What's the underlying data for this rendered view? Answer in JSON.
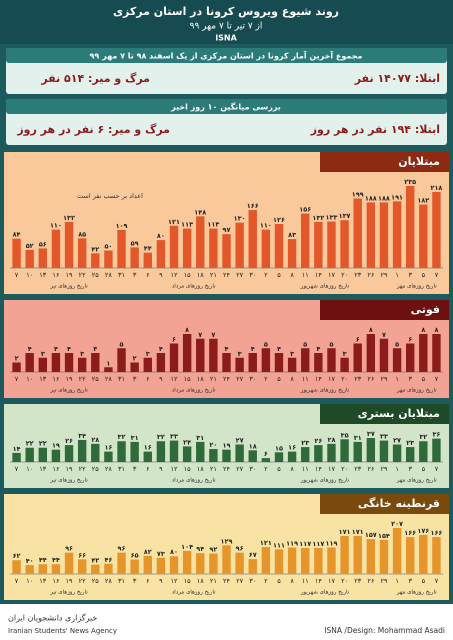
{
  "header": {
    "title": "روند شیوع ویروس کرونا در استان مرکزی",
    "subtitle": "از ۷ تیر تا ۷ مهر ۹۹",
    "brand": "ISNA"
  },
  "summary": [
    {
      "title": "مجموع آخرین آمار کرونا در استان مرکزی از یک اسفند ۹۸ تا ۷ مهر ۹۹",
      "infected": "ابتلا: ۱۴۰۷۷ نفر",
      "deaths": "مرگ و میر: ۵۱۴ نفر"
    },
    {
      "title": "بررسی میانگین ۱۰ روز اخیر",
      "infected": "ابتلا: ۱۹۴ نفر در هر روز",
      "deaths": "مرگ و میر: ۶ نفر در هر روز"
    }
  ],
  "chart_data": [
    {
      "type": "bar",
      "title": "مبتلایان",
      "note": "اعداد بر حسب نفر است",
      "color": "#e2582b",
      "background": "#f9c99b",
      "tab": "#8e2a12",
      "categories": [
        "۷",
        "۱۰",
        "۱۳",
        "۱۶",
        "۱۹",
        "۲۲",
        "۲۵",
        "۲۸",
        "۳۱",
        "۳",
        "۶",
        "۹",
        "۱۲",
        "۱۵",
        "۱۸",
        "۲۱",
        "۲۴",
        "۲۷",
        "۳۰",
        "۲",
        "۵",
        "۸",
        "۱۱",
        "۱۴",
        "۱۷",
        "۲۰",
        "۲۳",
        "۲۶",
        "۲۹",
        "۱",
        "۳",
        "۵",
        "۷"
      ],
      "values": [
        84,
        52,
        56,
        110,
        132,
        85,
        42,
        50,
        109,
        59,
        44,
        80,
        121,
        113,
        148,
        113,
        97,
        130,
        166,
        110,
        126,
        83,
        156,
        132,
        133,
        137,
        199,
        188,
        188,
        191,
        235,
        182,
        218
      ],
      "value_labels": [
        "۸۴",
        "۵۲",
        "۵۶",
        "۱۱۰",
        "۱۳۲",
        "۸۵",
        "۴۲",
        "۵۰",
        "۱۰۹",
        "۵۹",
        "۴۴",
        "۸۰",
        "۱۲۱",
        "۱۱۳",
        "۱۴۸",
        "۱۱۳",
        "۹۷",
        "۱۳۰",
        "۱۶۶",
        "۱۱۰",
        "۱۲۶",
        "۸۳",
        "۱۵۶",
        "۱۳۲",
        "۱۳۳",
        "۱۳۷",
        "۱۹۹",
        "۱۸۸",
        "۱۸۸",
        "۱۹۱",
        "۲۳۵",
        "۱۸۲",
        "۲۱۸"
      ],
      "annotations": [
        "تاریخ روزهای تیر",
        "تاریخ روزهای مرداد",
        "تاریخ روزهای شهریور",
        "تاریخ روزهای مهر"
      ]
    },
    {
      "type": "bar",
      "title": "فوتی",
      "color": "#8c1b1b",
      "background": "#f3a393",
      "tab": "#6e1010",
      "categories": [
        "۷",
        "۱۰",
        "۱۳",
        "۱۶",
        "۱۹",
        "۲۲",
        "۲۵",
        "۲۸",
        "۳۱",
        "۳",
        "۶",
        "۹",
        "۱۲",
        "۱۵",
        "۱۸",
        "۲۱",
        "۲۴",
        "۲۷",
        "۳۰",
        "۲",
        "۵",
        "۸",
        "۱۱",
        "۱۴",
        "۱۷",
        "۲۰",
        "۲۳",
        "۲۶",
        "۲۹",
        "۱",
        "۳",
        "۵",
        "۷"
      ],
      "values": [
        2,
        4,
        3,
        4,
        4,
        3,
        4,
        1,
        5,
        2,
        3,
        4,
        6,
        8,
        7,
        7,
        4,
        3,
        4,
        5,
        4,
        3,
        5,
        4,
        5,
        3,
        6,
        8,
        7,
        5,
        6,
        8,
        8
      ],
      "value_labels": [
        "۲",
        "۴",
        "۳",
        "۴",
        "۴",
        "۳",
        "۴",
        "۱",
        "۵",
        "۲",
        "۳",
        "۴",
        "۶",
        "۸",
        "۷",
        "۷",
        "۴",
        "۳",
        "۴",
        "۵",
        "۴",
        "۳",
        "۵",
        "۴",
        "۵",
        "۳",
        "۶",
        "۸",
        "۷",
        "۵",
        "۶",
        "۸",
        "۸"
      ],
      "annotations": [
        "تاریخ روزهای تیر",
        "تاریخ روزهای مرداد",
        "تاریخ روزهای شهریور",
        "تاریخ روزهای مهر"
      ]
    },
    {
      "type": "bar",
      "title": "مبتلایان بستری",
      "color": "#2f6b3a",
      "background": "#d2e5c9",
      "tab": "#1f4a28",
      "categories": [
        "۷",
        "۱۰",
        "۱۳",
        "۱۶",
        "۱۹",
        "۲۲",
        "۲۵",
        "۲۸",
        "۳۱",
        "۳",
        "۶",
        "۹",
        "۱۲",
        "۱۵",
        "۱۸",
        "۲۱",
        "۲۴",
        "۲۷",
        "۳۰",
        "۲",
        "۵",
        "۸",
        "۱۱",
        "۱۴",
        "۱۷",
        "۲۰",
        "۲۳",
        "۲۶",
        "۲۹",
        "۱",
        "۳",
        "۵",
        "۷"
      ],
      "values": [
        14,
        22,
        22,
        19,
        26,
        34,
        28,
        16,
        32,
        31,
        16,
        32,
        33,
        24,
        31,
        20,
        19,
        27,
        18,
        6,
        15,
        16,
        23,
        26,
        28,
        35,
        31,
        37,
        33,
        27,
        23,
        32,
        36
      ],
      "value_labels": [
        "۱۴",
        "۲۲",
        "۲۲",
        "۱۹",
        "۲۶",
        "۳۴",
        "۲۸",
        "۱۶",
        "۳۲",
        "۳۱",
        "۱۶",
        "۳۲",
        "۳۳",
        "۲۴",
        "۳۱",
        "۲۰",
        "۱۹",
        "۲۷",
        "۱۸",
        "۶",
        "۱۵",
        "۱۶",
        "۲۳",
        "۲۶",
        "۲۸",
        "۳۵",
        "۳۱",
        "۳۷",
        "۳۳",
        "۲۷",
        "۲۳",
        "۳۲",
        "۳۶"
      ],
      "annotations": [
        "تاریخ روزهای تیر",
        "تاریخ روزهای مرداد",
        "تاریخ روزهای شهریور",
        "تاریخ روزهای مهر"
      ]
    },
    {
      "type": "bar",
      "title": "قرنطینه خانگی",
      "color": "#e6952a",
      "background": "#f8e3a4",
      "tab": "#7a4a0c",
      "categories": [
        "۷",
        "۱۰",
        "۱۳",
        "۱۶",
        "۱۹",
        "۲۲",
        "۲۵",
        "۲۸",
        "۳۱",
        "۳",
        "۶",
        "۹",
        "۱۲",
        "۱۵",
        "۱۸",
        "۲۱",
        "۲۴",
        "۲۷",
        "۳۰",
        "۲",
        "۵",
        "۸",
        "۱۱",
        "۱۴",
        "۱۷",
        "۲۰",
        "۲۳",
        "۲۶",
        "۲۹",
        "۱",
        "۳",
        "۵",
        "۷"
      ],
      "values": [
        62,
        40,
        44,
        44,
        96,
        66,
        42,
        46,
        96,
        65,
        82,
        73,
        80,
        104,
        94,
        92,
        129,
        96,
        67,
        121,
        111,
        119,
        117,
        117,
        119,
        171,
        171,
        157,
        154,
        207,
        166,
        176,
        166
      ],
      "value_labels": [
        "۶۲",
        "۴۰",
        "۴۴",
        "۴۴",
        "۹۶",
        "۶۶",
        "۴۲",
        "۴۶",
        "۹۶",
        "۶۵",
        "۸۲",
        "۷۳",
        "۸۰",
        "۱۰۴",
        "۹۴",
        "۹۲",
        "۱۲۹",
        "۹۶",
        "۶۷",
        "۱۲۱",
        "۱۱۱",
        "۱۱۹",
        "۱۱۷",
        "۱۱۷",
        "۱۱۹",
        "۱۷۱",
        "۱۷۱",
        "۱۵۷",
        "۱۵۴",
        "۲۰۷",
        "۱۶۶",
        "۱۷۶",
        "۱۶۶"
      ],
      "annotations": [
        "تاریخ روزهای تیر",
        "تاریخ روزهای مرداد",
        "تاریخ روزهای شهریور",
        "تاریخ روزهای مهر"
      ]
    }
  ],
  "footer": {
    "credit": "ISNA /Design: Mohammad Asadi",
    "agency": "Iranian Students' News Agency",
    "agency_fa": "خبرگزاری دانشجویان ایران"
  }
}
